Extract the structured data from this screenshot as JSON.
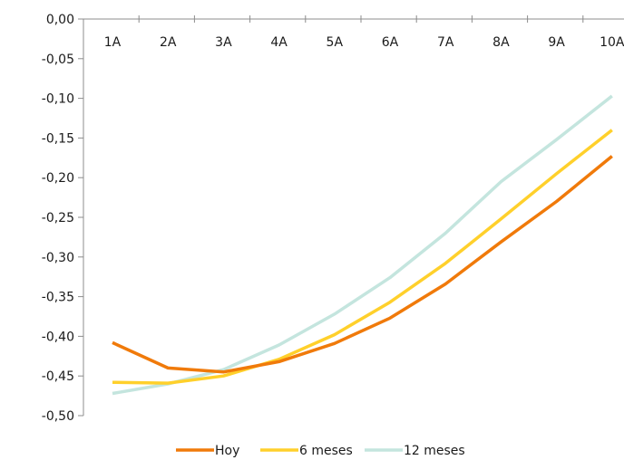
{
  "chart_data": {
    "type": "line",
    "categories": [
      "1A",
      "2A",
      "3A",
      "4A",
      "5A",
      "6A",
      "7A",
      "8A",
      "9A",
      "10A"
    ],
    "ylim": [
      -0.5,
      0.0
    ],
    "yticks": [
      "0,00",
      "-0,05",
      "-0,10",
      "-0,15",
      "-0,20",
      "-0,25",
      "-0,30",
      "-0,35",
      "-0,40",
      "-0,45",
      "-0,50"
    ],
    "grid": false,
    "legend_position": "bottom",
    "series": [
      {
        "name": "Hoy",
        "color": "#F07A0A",
        "values": [
          -0.408,
          -0.44,
          -0.445,
          -0.432,
          -0.409,
          -0.377,
          -0.334,
          -0.281,
          -0.23,
          -0.173
        ]
      },
      {
        "name": "6 meses",
        "color": "#FFD02B",
        "values": [
          -0.458,
          -0.459,
          -0.45,
          -0.429,
          -0.398,
          -0.357,
          -0.308,
          -0.252,
          -0.195,
          -0.14
        ]
      },
      {
        "name": "12 meses",
        "color": "#C4E5DE",
        "values": [
          -0.472,
          -0.46,
          -0.442,
          -0.411,
          -0.372,
          -0.326,
          -0.27,
          -0.205,
          -0.152,
          -0.097
        ]
      }
    ]
  }
}
